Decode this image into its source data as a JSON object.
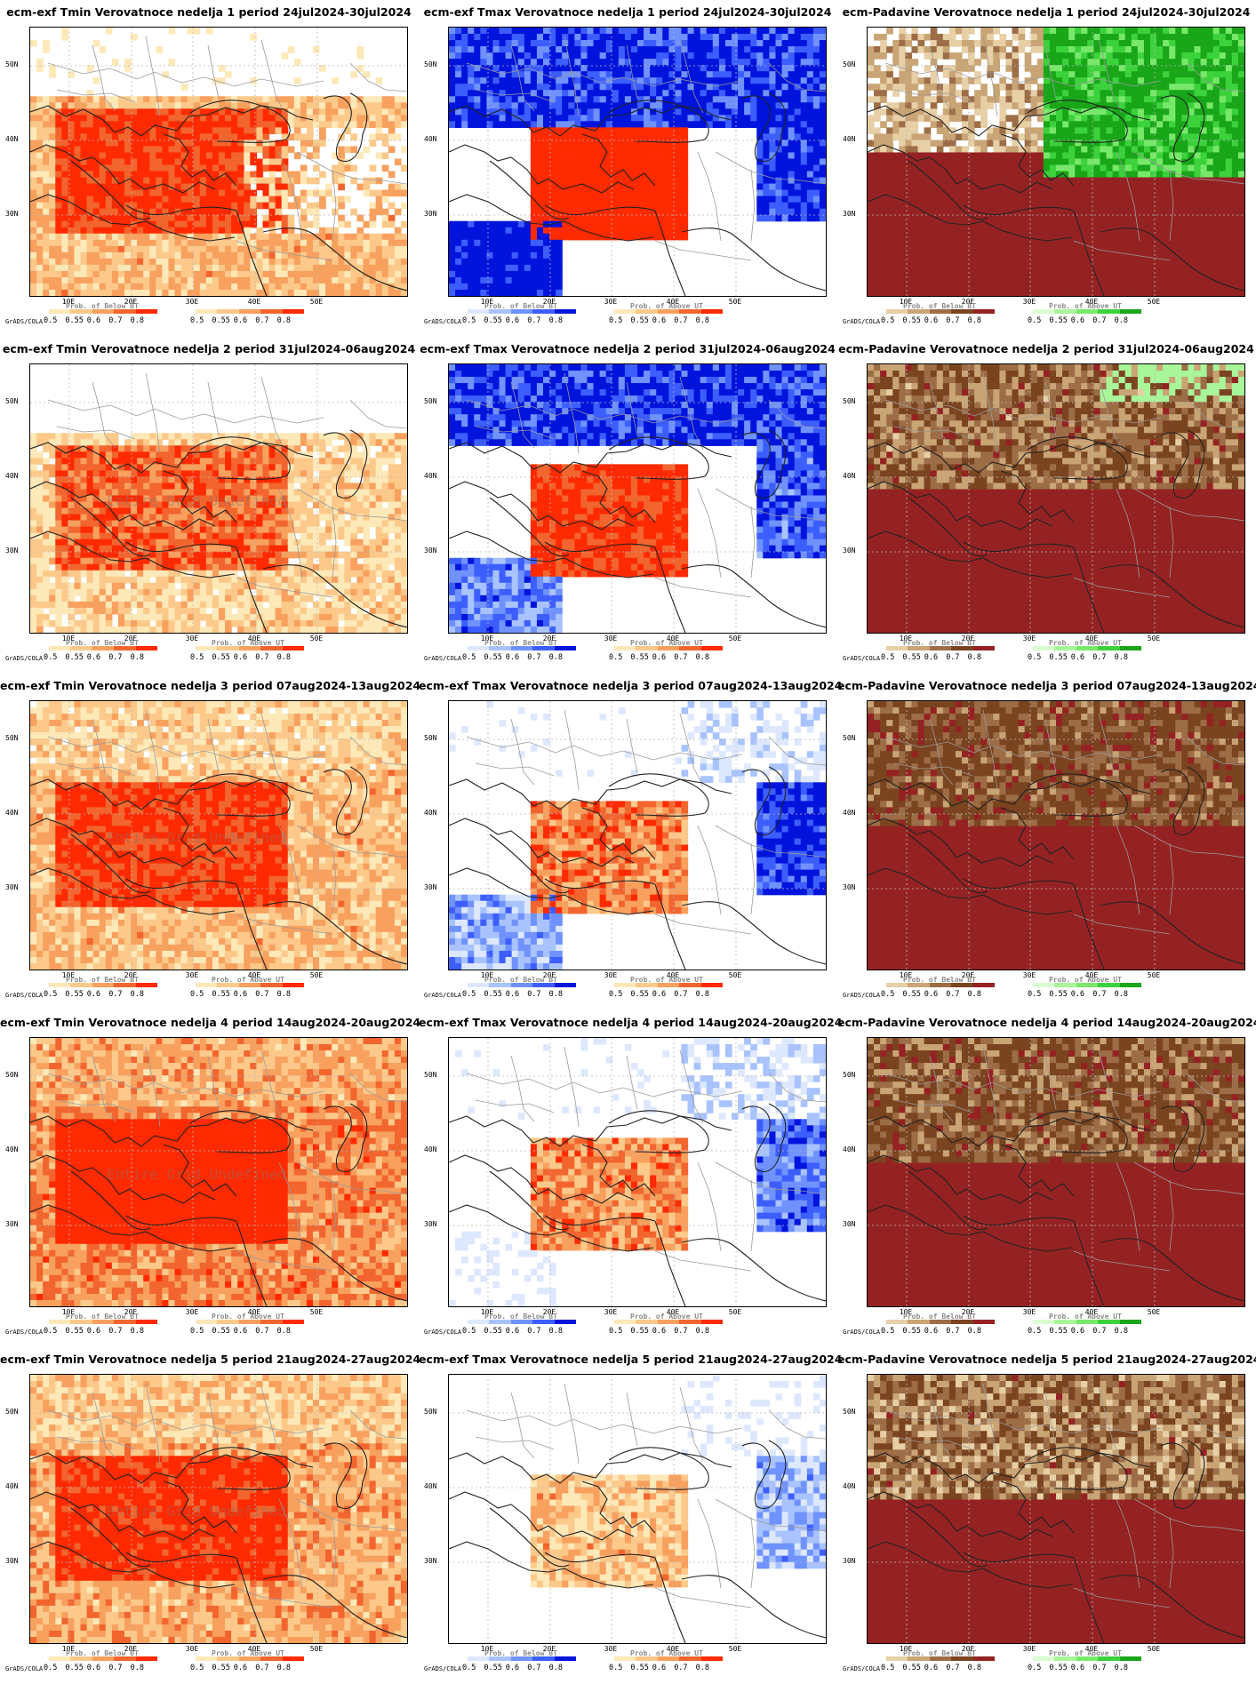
{
  "credit": "GrADS/COLA",
  "lat_labels": [
    "50N",
    "40N",
    "30N"
  ],
  "lon_labels": [
    "10E",
    "20E",
    "30E",
    "40E",
    "50E"
  ],
  "tick_labels": [
    "0.5",
    "0.55",
    "0.6",
    "0.7",
    "0.8"
  ],
  "overlays": {
    "below": "Prob. of Below BT",
    "above": "Prob. of Above UT",
    "watermark": "Entire Grid Undefined"
  },
  "colors": {
    "warm": [
      "#fde8b8",
      "#fcc98a",
      "#f8a05e",
      "#f2652e",
      "#ff2a00"
    ],
    "cold": [
      "#dde8ff",
      "#a8c3ff",
      "#6f92ff",
      "#3d5eff",
      "#0014dc"
    ],
    "dry": [
      "#e7cfa6",
      "#c9a474",
      "#9c6d47",
      "#7a4420",
      "#952222"
    ],
    "wet": [
      "#d9ffd0",
      "#a8f59a",
      "#78e86a",
      "#3cd23c",
      "#19a619"
    ]
  },
  "panels": [
    {
      "title": "ecm-exf Tmin Verovatnoce nedelja 1 period 24jul2024-30jul2024",
      "kind": "tmin",
      "week": 1,
      "credit": "GrADS/COLA"
    },
    {
      "title": "ecm-exf Tmax Verovatnoce nedelja 1 period 24jul2024-30jul2024",
      "kind": "tmax",
      "week": 1,
      "credit": "GrADS/COLA"
    },
    {
      "title": "ecm-Padavine Verovatnoce nedelja 1 period 24jul2024-30jul2024",
      "kind": "prec",
      "week": 1,
      "credit": "GrADS/COLA"
    },
    {
      "title": "ecm-exf Tmin Verovatnoce nedelja 2 period 31jul2024-06aug2024",
      "kind": "tmin",
      "week": 2,
      "credit": "GrADS/COLA"
    },
    {
      "title": "ecm-exf Tmax Verovatnoce nedelja 2 period 31jul2024-06aug2024",
      "kind": "tmax",
      "week": 2,
      "credit": "GrADS/COLA"
    },
    {
      "title": "ecm-Padavine Verovatnoce nedelja 2 period 31jul2024-06aug2024",
      "kind": "prec",
      "week": 2,
      "credit": "GrADS/COLA"
    },
    {
      "title": "ecm-exf Tmin Verovatnoce nedelja 3 period 07aug2024-13aug2024",
      "kind": "tmin",
      "week": 3,
      "credit": "GrADS/COLA"
    },
    {
      "title": "ecm-exf Tmax Verovatnoce nedelja 3 period 07aug2024-13aug2024",
      "kind": "tmax",
      "week": 3,
      "credit": "GrADS/COLA"
    },
    {
      "title": "ecm-Padavine Verovatnoce nedelja 3 period 07aug2024-13aug2024",
      "kind": "prec",
      "week": 3,
      "credit": "GrADS/COLA"
    },
    {
      "title": "ecm-exf Tmin Verovatnoce nedelja 4 period 14aug2024-20aug2024",
      "kind": "tmin",
      "week": 4,
      "credit": "GrADS/COLA"
    },
    {
      "title": "ecm-exf Tmax Verovatnoce nedelja 4 period 14aug2024-20aug2024",
      "kind": "tmax",
      "week": 4,
      "credit": "GrADS/COLA"
    },
    {
      "title": "ecm-Padavine Verovatnoce nedelja 4 period 14aug2024-20aug2024",
      "kind": "prec",
      "week": 4,
      "credit": "GrADS/COLA"
    },
    {
      "title": "ecm-exf Tmin Verovatnoce nedelja 5 period 21aug2024-27aug2024",
      "kind": "tmin",
      "week": 5,
      "credit": "GrADS/COLA"
    },
    {
      "title": "ecm-exf Tmax Verovatnoce nedelja 5 period 21aug2024-27aug2024",
      "kind": "tmax",
      "week": 5,
      "credit": "GrADS/COLA"
    },
    {
      "title": "ecm-Padavine Verovatnoce nedelja 5 period 21aug2024-27aug2024",
      "kind": "prec",
      "week": 5,
      "credit": "GrADS/COLA"
    }
  ]
}
